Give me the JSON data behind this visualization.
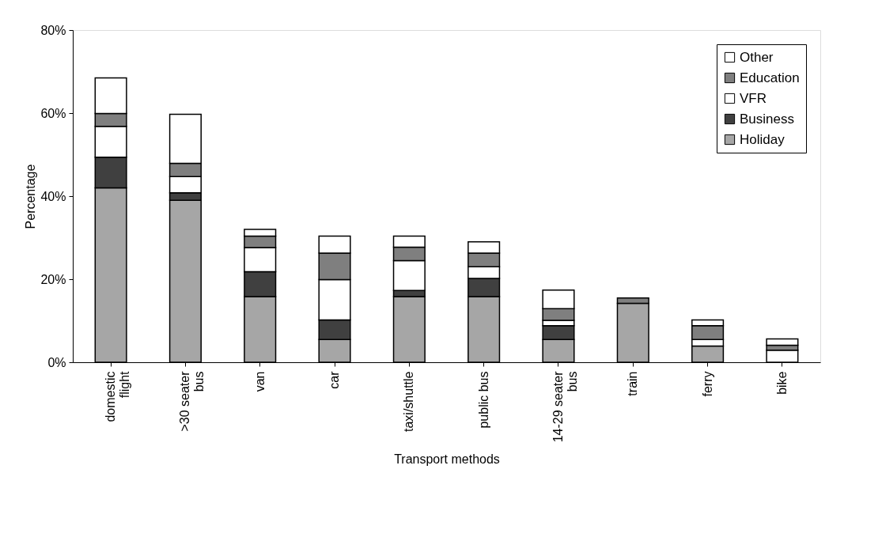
{
  "chart_data": {
    "type": "bar",
    "stacked": true,
    "xlabel": "Transport methods",
    "ylabel": "Percentage",
    "categories": [
      "domestic flight",
      ">30 seater bus",
      "van",
      "car",
      "taxi/shuttle",
      "public bus",
      "14-29 seater bus",
      "train",
      "ferry",
      "bike"
    ],
    "series": [
      {
        "name": "Holiday",
        "color": "#a6a6a6",
        "values": [
          42,
          39,
          15.8,
          5.5,
          15.8,
          15.8,
          5.5,
          14.2,
          3.9,
          0
        ]
      },
      {
        "name": "Business",
        "color": "#404040",
        "values": [
          7.4,
          1.8,
          6,
          4.7,
          1.5,
          4.4,
          3.3,
          0,
          0,
          0
        ]
      },
      {
        "name": "VFR",
        "color": "#ffffff",
        "values": [
          7.4,
          3.9,
          5.8,
          9.7,
          7.2,
          2.8,
          1.3,
          0,
          1.6,
          2.9
        ]
      },
      {
        "name": "Education",
        "color": "#7f7f7f",
        "values": [
          3.1,
          3.2,
          2.8,
          6.4,
          3.2,
          3.3,
          2.8,
          1.3,
          3.3,
          1.2
        ]
      },
      {
        "name": "Other",
        "color": "#ffffff",
        "values": [
          8.6,
          11.8,
          1.6,
          4.1,
          2.7,
          2.7,
          4.5,
          0,
          1.4,
          1.5
        ]
      }
    ],
    "ylim": [
      0,
      80
    ],
    "yticks": [
      {
        "value": 0,
        "label": "0%"
      },
      {
        "value": 20,
        "label": "20%"
      },
      {
        "value": 40,
        "label": "40%"
      },
      {
        "value": 60,
        "label": "60%"
      },
      {
        "value": 80,
        "label": "80%"
      }
    ],
    "grid": false,
    "legend": "top right"
  }
}
